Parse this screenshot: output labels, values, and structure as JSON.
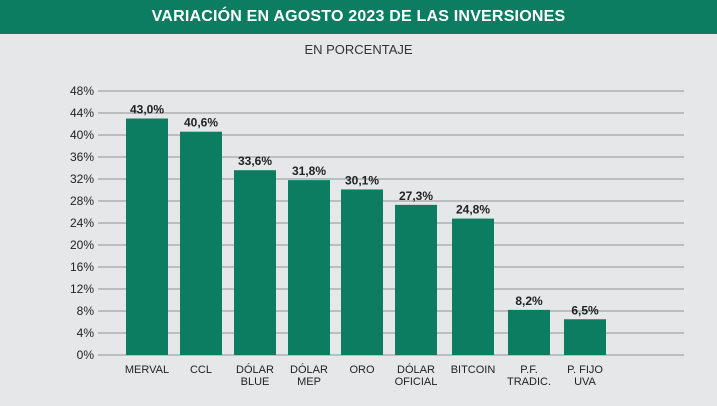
{
  "header": {
    "title": "VARIACIÓN EN AGOSTO 2023 DE LAS INVERSIONES",
    "subtitle": "EN PORCENTAJE"
  },
  "colors": {
    "bar": "#0d7d62",
    "header": "#0d7d62",
    "background": "#e6e7e8",
    "gridline": "#777777"
  },
  "chart_data": {
    "type": "bar",
    "title": "VARIACIÓN EN AGOSTO 2023 DE LAS INVERSIONES",
    "subtitle": "EN PORCENTAJE",
    "xlabel": "",
    "ylabel": "",
    "ylim": [
      0,
      48
    ],
    "yticks": [
      0,
      4,
      8,
      12,
      16,
      20,
      24,
      28,
      32,
      36,
      40,
      44,
      48
    ],
    "ytick_labels": [
      "0%",
      "4%",
      "8%",
      "12%",
      "16%",
      "20%",
      "24%",
      "28%",
      "32%",
      "36%",
      "40%",
      "44%",
      "48%"
    ],
    "grid": true,
    "categories": [
      [
        "MERVAL"
      ],
      [
        "CCL"
      ],
      [
        "DÓLAR",
        "BLUE"
      ],
      [
        "DÓLAR",
        "MEP"
      ],
      [
        "ORO"
      ],
      [
        "DÓLAR",
        "OFICIAL"
      ],
      [
        "BITCOIN"
      ],
      [
        "P.F.",
        "TRADIC."
      ],
      [
        "P. FIJO",
        "UVA"
      ]
    ],
    "values": [
      43.0,
      40.6,
      33.6,
      31.8,
      30.1,
      27.3,
      24.8,
      8.2,
      6.5
    ],
    "value_labels": [
      "43,0%",
      "40,6%",
      "33,6%",
      "31,8%",
      "30,1%",
      "27,3%",
      "24,8%",
      "8,2%",
      "6,5%"
    ]
  }
}
